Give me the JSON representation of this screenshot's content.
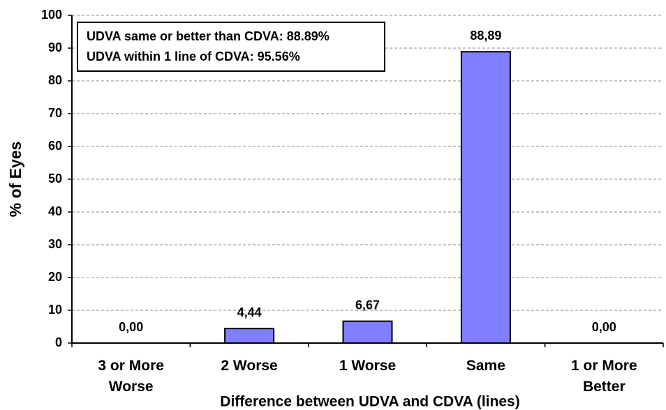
{
  "chart_data": {
    "type": "bar",
    "x_label": "Difference between UDVA and CDVA (lines)",
    "y_label": "% of Eyes",
    "annotations": [
      "UDVA same or better than CDVA: 88.89%",
      "UDVA within 1 line of CDVA: 95.56%"
    ],
    "categories": [
      "3 or More Worse",
      "2 Worse",
      "1 Worse",
      "Same",
      "1 or More Better"
    ],
    "values": [
      0,
      4.44,
      6.67,
      88.89,
      0
    ],
    "value_labels": [
      "0,00",
      "4,44",
      "6,67",
      "88,89",
      "0,00"
    ],
    "color": "#7f7fff",
    "ylim": [
      0,
      100
    ],
    "yticks": [
      0,
      10,
      20,
      30,
      40,
      50,
      60,
      70,
      80,
      90,
      100
    ],
    "grid": true
  }
}
